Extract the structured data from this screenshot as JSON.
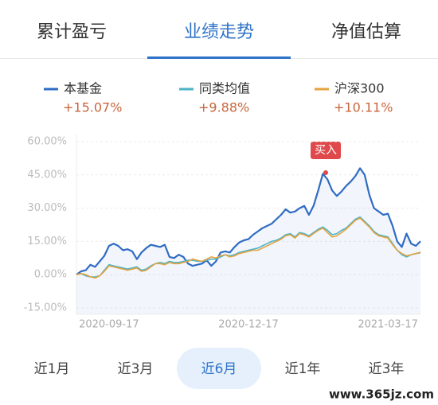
{
  "tabs": [
    "累计盈亏",
    "业绩走势",
    "净值估算"
  ],
  "chart_data": {
    "type": "line",
    "categories": [
      null,
      null,
      null,
      null,
      null,
      null,
      null,
      "2020-09-17",
      null,
      null,
      null,
      null,
      null,
      null,
      null,
      null,
      null,
      null,
      null,
      null,
      null,
      null,
      null,
      null,
      null,
      null,
      null,
      null,
      null,
      null,
      null,
      null,
      null,
      null,
      null,
      null,
      null,
      "2020-12-17",
      null,
      null,
      null,
      null,
      null,
      null,
      null,
      null,
      null,
      null,
      null,
      null,
      null,
      null,
      null,
      null,
      null,
      null,
      null,
      null,
      null,
      null,
      null,
      null,
      null,
      null,
      null,
      null,
      null,
      "2021-03-17",
      null,
      null,
      null,
      null,
      null,
      null,
      null
    ],
    "series": [
      {
        "name": "本基金",
        "change": "+15.07%",
        "color": "#2f6cc4",
        "values": [
          0,
          1.5,
          2,
          4.5,
          3.5,
          6,
          8.5,
          13,
          14,
          13,
          11,
          11.5,
          10.5,
          7,
          10,
          12,
          13.5,
          13,
          12.5,
          13.5,
          8,
          7.5,
          9,
          8,
          5,
          4,
          4.5,
          5,
          6.5,
          4,
          6,
          10,
          10.5,
          10,
          12.5,
          14.5,
          15.5,
          16,
          18,
          19.5,
          21,
          22,
          23,
          25,
          27,
          29.5,
          28,
          28.5,
          30,
          31,
          27,
          31,
          38,
          45.5,
          43,
          38,
          35.5,
          37.5,
          40,
          42,
          44.5,
          48,
          45,
          36,
          30,
          28.5,
          27,
          27.5,
          22,
          15,
          12.5,
          18.5,
          14,
          13,
          15.07
        ]
      },
      {
        "name": "同类均值",
        "change": "+9.88%",
        "color": "#4db3c6",
        "values": [
          0,
          0.5,
          -0.5,
          -1,
          -1,
          -0.5,
          2,
          4.5,
          4,
          3.5,
          3,
          2.5,
          3,
          3.5,
          2,
          2.5,
          4,
          5,
          5.5,
          5,
          6,
          5.5,
          5.5,
          6,
          6.5,
          6.5,
          6,
          6,
          6.5,
          7,
          7,
          8,
          9,
          8.5,
          9,
          10,
          10.5,
          11,
          11.5,
          12,
          13,
          14,
          15,
          15.5,
          16.5,
          18,
          18.5,
          17,
          19,
          18.5,
          17.5,
          19,
          20.5,
          21.5,
          20,
          18,
          18.5,
          20,
          21,
          23,
          25,
          26,
          24,
          22,
          19.5,
          18,
          17.5,
          17,
          14,
          11,
          9,
          8,
          9,
          9.5,
          9.88
        ]
      },
      {
        "name": "沪深300",
        "change": "+10.11%",
        "color": "#e4a33f",
        "values": [
          0,
          0.5,
          0,
          -1,
          -1.5,
          -0.5,
          1.5,
          4,
          3.5,
          3,
          2.5,
          2,
          2.5,
          3,
          1.5,
          2,
          3.5,
          5,
          5,
          4.5,
          5.5,
          5,
          5,
          5.5,
          6,
          7,
          6.5,
          6,
          7,
          8,
          7.5,
          8.5,
          9,
          8,
          8.5,
          9.5,
          10,
          10.5,
          11,
          11,
          12,
          13,
          14,
          15,
          16,
          17.5,
          18,
          16.5,
          18.5,
          18,
          17,
          18.5,
          20,
          21,
          19,
          17,
          17.5,
          19,
          20.5,
          22.5,
          24.5,
          25.5,
          23.5,
          21.5,
          19,
          17.5,
          17,
          16.5,
          13.5,
          11,
          9.5,
          8.5,
          9,
          9.5,
          10.11
        ]
      }
    ],
    "ylim": [
      -15,
      60
    ],
    "yticks": [
      {
        "value": -15,
        "label": "-15.00%"
      },
      {
        "value": 0,
        "label": "0.00%"
      },
      {
        "value": 15,
        "label": "15.00%"
      },
      {
        "value": 30,
        "label": "30.00%"
      },
      {
        "value": 45,
        "label": "45.00%"
      },
      {
        "value": 60,
        "label": "60.00%"
      }
    ],
    "grid": true,
    "annotation": "买入"
  },
  "ranges": [
    "近1月",
    "近3月",
    "近6月",
    "近1年",
    "近3年"
  ],
  "watermark": "www.365jz.com"
}
